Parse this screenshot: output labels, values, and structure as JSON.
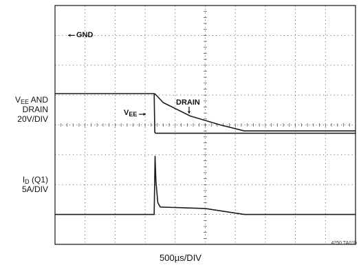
{
  "chart_data": {
    "type": "line",
    "title": "",
    "xlabel": "500µs/DIV",
    "figure_id": "4250 TA01b",
    "grid": true,
    "divisions": {
      "x": 10,
      "y": 8
    },
    "xlim_div": [
      0,
      10
    ],
    "ylim_div": [
      0,
      8
    ],
    "channels": [
      {
        "name_main": "V",
        "name_sub": "EE",
        "name_rest": " AND",
        "line2": "DRAIN",
        "scale": "20V/DIV"
      },
      {
        "name_main": "I",
        "name_sub": "D",
        "name_rest": " (Q1)",
        "scale": "5A/DIV"
      }
    ],
    "annotations": {
      "gnd": "GND",
      "drain": "DRAIN",
      "vee_main": "V",
      "vee_sub": "EE"
    },
    "series": [
      {
        "name": "V_EE",
        "x_div": [
          0,
          3.3,
          3.32,
          3.35,
          10
        ],
        "y_div": [
          5.05,
          5.05,
          3.75,
          3.72,
          3.72
        ]
      },
      {
        "name": "DRAIN",
        "x_div": [
          3.32,
          3.6,
          4.5,
          5.5,
          6.3,
          10
        ],
        "y_div": [
          5.05,
          4.75,
          4.3,
          4.0,
          3.8,
          3.8
        ]
      },
      {
        "name": "I_D",
        "x_div": [
          0,
          3.3,
          3.33,
          3.36,
          3.42,
          3.5,
          5.0,
          6.3,
          10
        ],
        "y_div": [
          1.0,
          1.0,
          2.95,
          2.1,
          1.4,
          1.25,
          1.2,
          1.0,
          1.0
        ]
      }
    ]
  }
}
